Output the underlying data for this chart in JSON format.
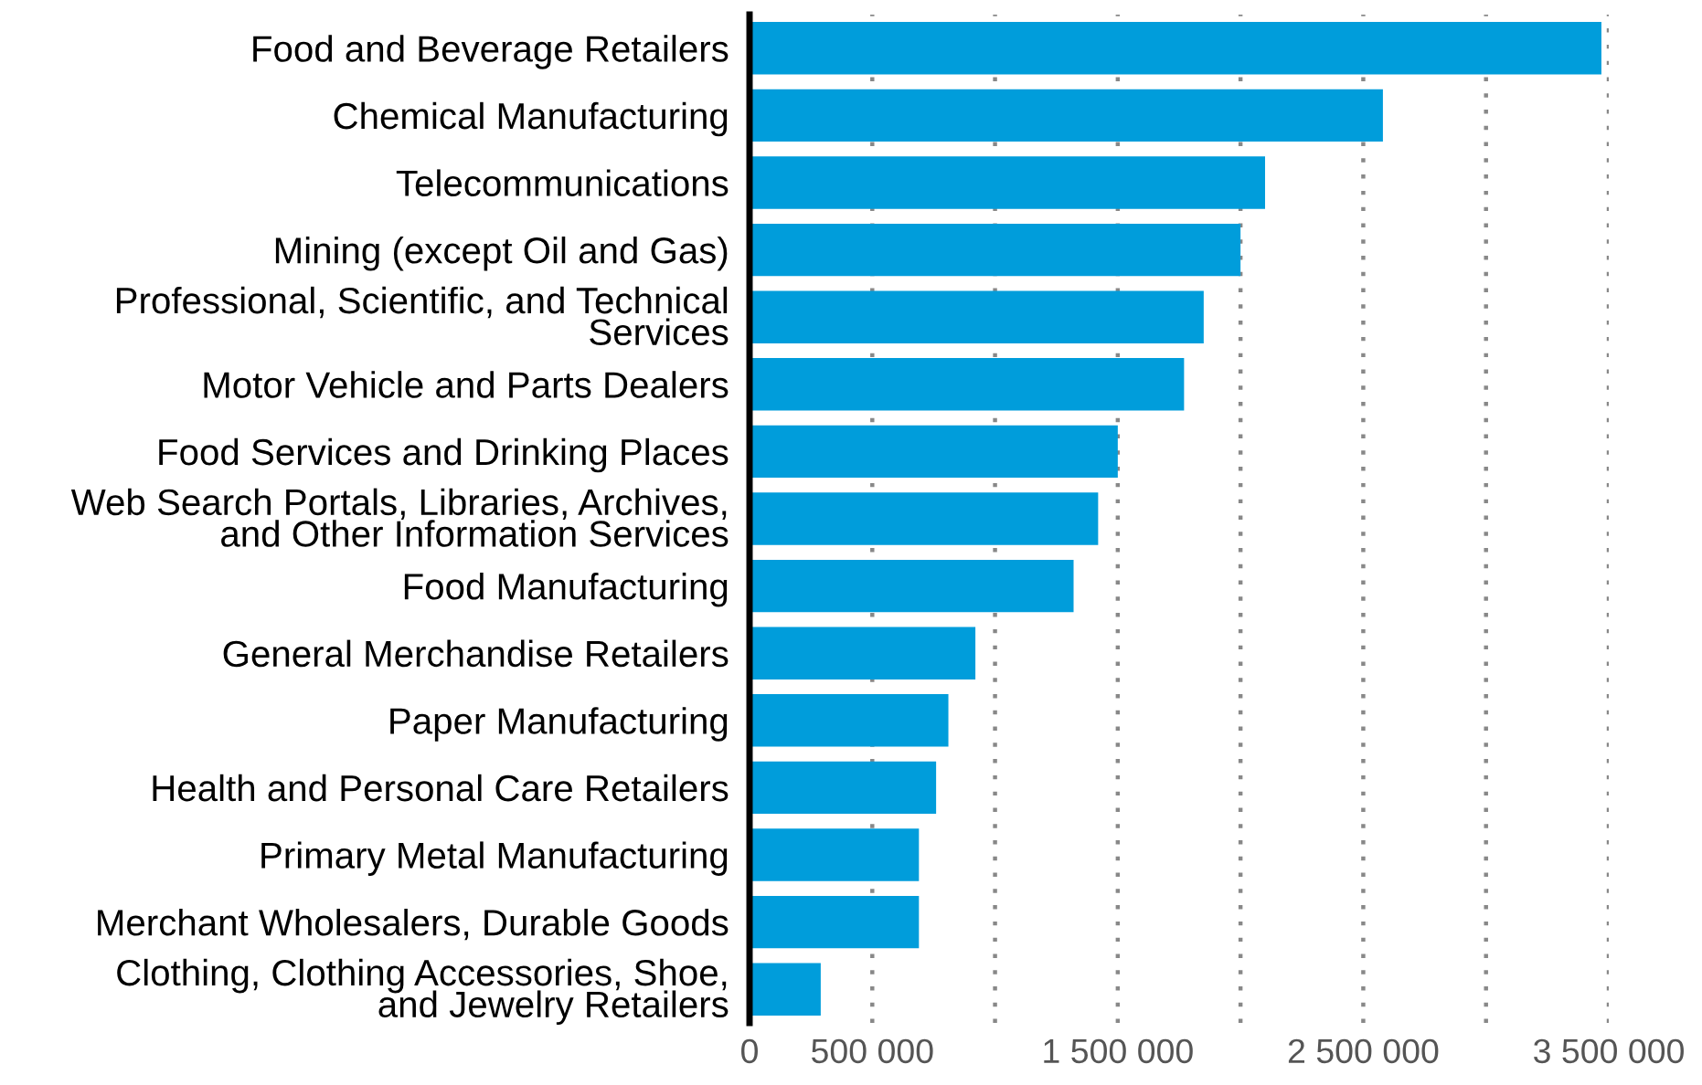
{
  "chart_data": {
    "type": "bar",
    "orientation": "horizontal",
    "categories": [
      "Food and Beverage Retailers",
      "Chemical Manufacturing",
      "Telecommunications",
      "Mining (except Oil and Gas)",
      "Professional, Scientific, and Technical\nServices",
      "Motor Vehicle and Parts Dealers",
      "Food Services and Drinking Places",
      "Web Search Portals, Libraries, Archives,\nand Other Information Services",
      "Food Manufacturing",
      "General Merchandise Retailers",
      "Paper Manufacturing",
      "Health and Personal Care Retailers",
      "Primary Metal Manufacturing",
      "Merchant Wholesalers, Durable Goods",
      "Clothing, Clothing Accessories, Shoe,\nand Jewelry Retailers"
    ],
    "values": [
      3470000,
      2580000,
      2100000,
      2000000,
      1850000,
      1770000,
      1500000,
      1420000,
      1320000,
      920000,
      810000,
      760000,
      690000,
      690000,
      290000
    ],
    "color": "#009ddb",
    "xlim": [
      0,
      3500000
    ],
    "xticks": [
      0,
      500000,
      {
        "value": 1000000,
        "label": null
      },
      1500000,
      {
        "value": 2000000,
        "label": null
      },
      2500000,
      {
        "value": 3000000,
        "label": null
      },
      3500000
    ],
    "grid": "x"
  }
}
